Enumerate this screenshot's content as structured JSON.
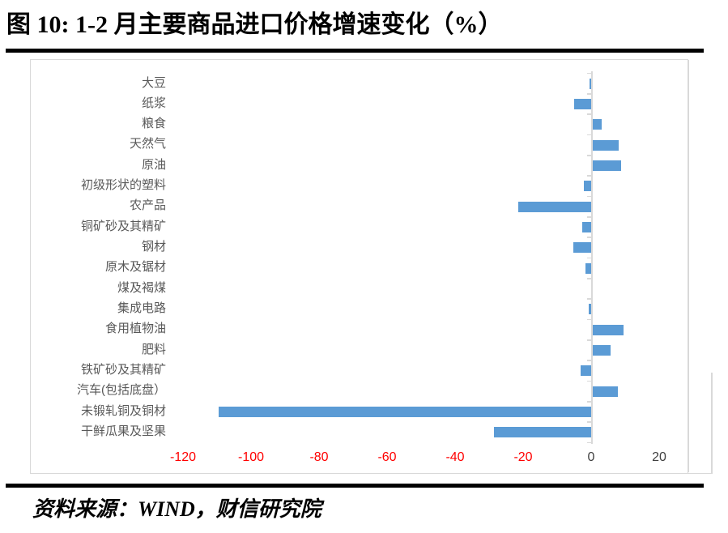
{
  "page": {
    "title": "图 10: 1-2 月主要商品进口价格增速变化（%）",
    "source": "资料来源：WIND，财信研究院"
  },
  "chart_data": {
    "type": "bar",
    "orientation": "horizontal",
    "title": "图 10: 1-2 月主要商品进口价格增速变化（%）",
    "unit": "%",
    "categories": [
      "大豆",
      "纸浆",
      "粮食",
      "天然气",
      "原油",
      "初级形状的塑料",
      "农产品",
      "铜矿砂及其精矿",
      "钢材",
      "原木及锯材",
      "煤及褐煤",
      "集成电路",
      "食用植物油",
      "肥料",
      "铁矿砂及其精矿",
      "汽车(包括底盘）",
      "未锻轧铜及铜材",
      "干鲜瓜果及坚果"
    ],
    "values": [
      -0.5,
      -5,
      2.8,
      7.8,
      8.5,
      -2.1,
      -21.4,
      -2.6,
      -5.2,
      -1.6,
      0,
      -0.6,
      9.2,
      5.4,
      -3.1,
      7.5,
      -109.5,
      -28.5
    ],
    "x_ticks": [
      -120,
      -100,
      -80,
      -60,
      -40,
      -20,
      0,
      20
    ],
    "xlim": [
      -130,
      28
    ],
    "xlabel": "",
    "ylabel": "",
    "grid": false,
    "legend": "none",
    "bar_color": "#5B9BD5",
    "negative_tick_label_color": "#FF0000",
    "tick_label_color": "#404040",
    "axis_line_color": "#D9D9D9"
  }
}
